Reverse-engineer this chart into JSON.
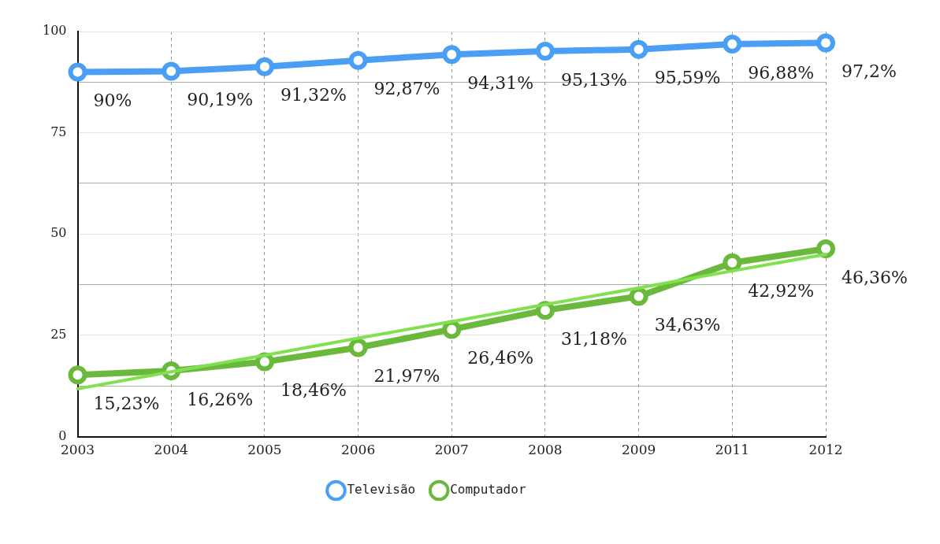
{
  "chart_data": {
    "type": "line",
    "categories": [
      "2003",
      "2004",
      "2005",
      "2006",
      "2007",
      "2008",
      "2009",
      "2011",
      "2012"
    ],
    "series": [
      {
        "name": "Televisão",
        "color": "#4a9ff5",
        "values": [
          90,
          90.19,
          91.32,
          92.87,
          94.31,
          95.13,
          95.59,
          96.88,
          97.2
        ],
        "value_labels": [
          "90%",
          "90,19%",
          "91,32%",
          "92,87%",
          "94,31%",
          "95,13%",
          "95,59%",
          "96,88%",
          "97,2%"
        ]
      },
      {
        "name": "Computador",
        "color": "#6ab93c",
        "values": [
          15.23,
          16.26,
          18.46,
          21.97,
          26.46,
          31.18,
          34.63,
          42.92,
          46.36
        ],
        "value_labels": [
          "15,23%",
          "16,26%",
          "18,46%",
          "21,97%",
          "26,46%",
          "31,18%",
          "34,63%",
          "42,92%",
          "46,36%"
        ]
      },
      {
        "type": "line",
        "color": "#80e050",
        "marker": "none",
        "values": [
          11.8,
          16.0,
          20.1,
          24.3,
          28.4,
          32.6,
          36.7,
          40.9,
          45.0
        ]
      }
    ],
    "ylim": [
      0,
      100
    ],
    "yticks": [
      0,
      {
        "value": 12.5,
        "label": null
      },
      25,
      {
        "value": 37.5,
        "label": null
      },
      50,
      {
        "value": 62.5,
        "label": null
      },
      75,
      {
        "value": 87.5,
        "label": null
      },
      100
    ],
    "grid": true,
    "legend": "bottom",
    "marker": "circle"
  }
}
